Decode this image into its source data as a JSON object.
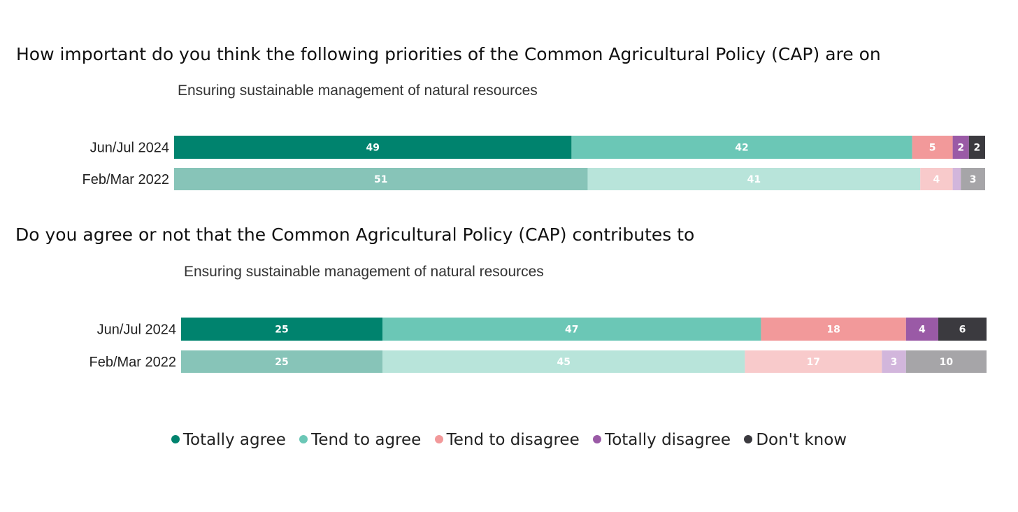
{
  "question1": "How important do you think the following priorities of the Common Agricultural Policy (CAP) are on",
  "question2": "Do you agree or not that the Common Agricultural Policy (CAP) contributes to",
  "legend": [
    {
      "label": "Totally agree",
      "color": "#00836e"
    },
    {
      "label": "Tend to agree",
      "color": "#6bc7b6"
    },
    {
      "label": "Tend to disagree",
      "color": "#f2999a"
    },
    {
      "label": "Totally disagree",
      "color": "#9a5aa6"
    },
    {
      "label": "Don't know",
      "color": "#3b3a3f"
    }
  ],
  "chart_data": [
    {
      "type": "bar",
      "orientation": "horizontal",
      "stacked": true,
      "title": "Ensuring sustainable management of natural resources",
      "categories": [
        "Jun/Jul 2024",
        "Feb/Mar 2022"
      ],
      "series": [
        {
          "name": "Totally agree",
          "values": [
            49,
            51
          ]
        },
        {
          "name": "Tend to agree",
          "values": [
            42,
            41
          ]
        },
        {
          "name": "Tend to disagree",
          "values": [
            5,
            4
          ]
        },
        {
          "name": "Totally disagree",
          "values": [
            2,
            1
          ]
        },
        {
          "name": "Don't know",
          "values": [
            2,
            3
          ]
        }
      ],
      "labels_shown": [
        [
          "49",
          "42",
          "5",
          "2",
          "2"
        ],
        [
          "51",
          "41",
          "4",
          "",
          "3"
        ]
      ],
      "colors": [
        [
          "#00836e",
          "#6bc7b6",
          "#f2999a",
          "#9a5aa6",
          "#3b3a3f"
        ],
        [
          "#87c4b8",
          "#b8e4da",
          "#f8cacb",
          "#d2b6dc",
          "#a6a5a8"
        ]
      ],
      "xlim": [
        0,
        100
      ]
    },
    {
      "type": "bar",
      "orientation": "horizontal",
      "stacked": true,
      "title": "Ensuring sustainable management of natural resources",
      "categories": [
        "Jun/Jul 2024",
        "Feb/Mar 2022"
      ],
      "series": [
        {
          "name": "Totally agree",
          "values": [
            25,
            25
          ]
        },
        {
          "name": "Tend to agree",
          "values": [
            47,
            45
          ]
        },
        {
          "name": "Tend to disagree",
          "values": [
            18,
            17
          ]
        },
        {
          "name": "Totally disagree",
          "values": [
            4,
            3
          ]
        },
        {
          "name": "Don't know",
          "values": [
            6,
            10
          ]
        }
      ],
      "labels_shown": [
        [
          "25",
          "47",
          "18",
          "4",
          "6"
        ],
        [
          "25",
          "45",
          "17",
          "3",
          "10"
        ]
      ],
      "colors": [
        [
          "#00836e",
          "#6bc7b6",
          "#f2999a",
          "#9a5aa6",
          "#3b3a3f"
        ],
        [
          "#87c4b8",
          "#b8e4da",
          "#f8cacb",
          "#d2b6dc",
          "#a6a5a8"
        ]
      ],
      "xlim": [
        0,
        100
      ]
    }
  ]
}
